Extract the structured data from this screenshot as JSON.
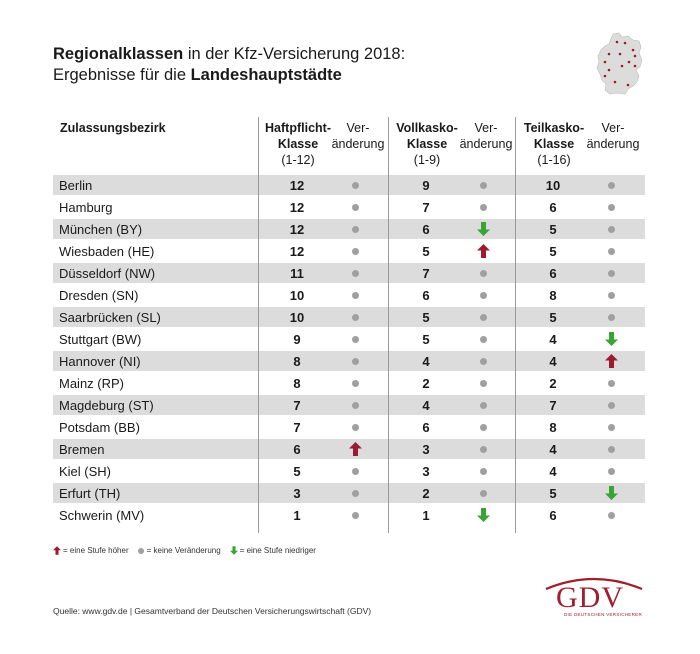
{
  "title": {
    "bold1": "Regionalklassen",
    "rest1": " in der Kfz-Versicherung 2018:",
    "rest2": "Ergebnisse für die ",
    "bold2": "Landeshauptstädte"
  },
  "headers": {
    "zulassungsbezirk": "Zulassungsbezirk",
    "haft": [
      "Haftpflicht-",
      "Klasse",
      "(1-12)"
    ],
    "voll": [
      "Vollkasko-",
      "Klasse",
      "(1-9)"
    ],
    "teil": [
      "Teilkasko-",
      "Klasse",
      "(1-16)"
    ],
    "veraenderung": [
      "Ver-",
      "änderung"
    ]
  },
  "rows": [
    {
      "city": "Berlin",
      "haft": "12",
      "haft_chg": "none",
      "voll": "9",
      "voll_chg": "none",
      "teil": "10",
      "teil_chg": "none"
    },
    {
      "city": "Hamburg",
      "haft": "12",
      "haft_chg": "none",
      "voll": "7",
      "voll_chg": "none",
      "teil": "6",
      "teil_chg": "none"
    },
    {
      "city": "München (BY)",
      "haft": "12",
      "haft_chg": "none",
      "voll": "6",
      "voll_chg": "down",
      "teil": "5",
      "teil_chg": "none"
    },
    {
      "city": "Wiesbaden (HE)",
      "haft": "12",
      "haft_chg": "none",
      "voll": "5",
      "voll_chg": "up",
      "teil": "5",
      "teil_chg": "none"
    },
    {
      "city": "Düsseldorf (NW)",
      "haft": "11",
      "haft_chg": "none",
      "voll": "7",
      "voll_chg": "none",
      "teil": "6",
      "teil_chg": "none"
    },
    {
      "city": "Dresden (SN)",
      "haft": "10",
      "haft_chg": "none",
      "voll": "6",
      "voll_chg": "none",
      "teil": "8",
      "teil_chg": "none"
    },
    {
      "city": "Saarbrücken (SL)",
      "haft": "10",
      "haft_chg": "none",
      "voll": "5",
      "voll_chg": "none",
      "teil": "5",
      "teil_chg": "none"
    },
    {
      "city": "Stuttgart (BW)",
      "haft": "9",
      "haft_chg": "none",
      "voll": "5",
      "voll_chg": "none",
      "teil": "4",
      "teil_chg": "down"
    },
    {
      "city": "Hannover (NI)",
      "haft": "8",
      "haft_chg": "none",
      "voll": "4",
      "voll_chg": "none",
      "teil": "4",
      "teil_chg": "up"
    },
    {
      "city": "Mainz (RP)",
      "haft": "8",
      "haft_chg": "none",
      "voll": "2",
      "voll_chg": "none",
      "teil": "2",
      "teil_chg": "none"
    },
    {
      "city": "Magdeburg (ST)",
      "haft": "7",
      "haft_chg": "none",
      "voll": "4",
      "voll_chg": "none",
      "teil": "7",
      "teil_chg": "none"
    },
    {
      "city": "Potsdam (BB)",
      "haft": "7",
      "haft_chg": "none",
      "voll": "6",
      "voll_chg": "none",
      "teil": "8",
      "teil_chg": "none"
    },
    {
      "city": "Bremen",
      "haft": "6",
      "haft_chg": "up",
      "voll": "3",
      "voll_chg": "none",
      "teil": "4",
      "teil_chg": "none"
    },
    {
      "city": "Kiel (SH)",
      "haft": "5",
      "haft_chg": "none",
      "voll": "3",
      "voll_chg": "none",
      "teil": "4",
      "teil_chg": "none"
    },
    {
      "city": "Erfurt (TH)",
      "haft": "3",
      "haft_chg": "none",
      "voll": "2",
      "voll_chg": "none",
      "teil": "5",
      "teil_chg": "down"
    },
    {
      "city": "Schwerin (MV)",
      "haft": "1",
      "haft_chg": "none",
      "voll": "1",
      "voll_chg": "down",
      "teil": "6",
      "teil_chg": "none"
    }
  ],
  "legend": {
    "up": "= eine Stufe höher",
    "none": "= keine Veränderung",
    "down": "= eine Stufe niedriger"
  },
  "source": "Quelle: www.gdv.de | Gesamtverband der Deutschen Versicherungswirtschaft (GDV)",
  "logo": {
    "text": "GDV",
    "sub": "DIE DEUTSCHEN VERSICHERER"
  },
  "colors": {
    "up": "#9b1b30",
    "down": "#3aa335",
    "neutral_dot": "#a0a0a0",
    "row_shade": "#dcdcdc",
    "brand": "#a01e2e"
  },
  "icons": {
    "map": "germany-map-icon",
    "up": "arrow-up-icon",
    "down": "arrow-down-icon",
    "none": "neutral-dot-icon"
  }
}
